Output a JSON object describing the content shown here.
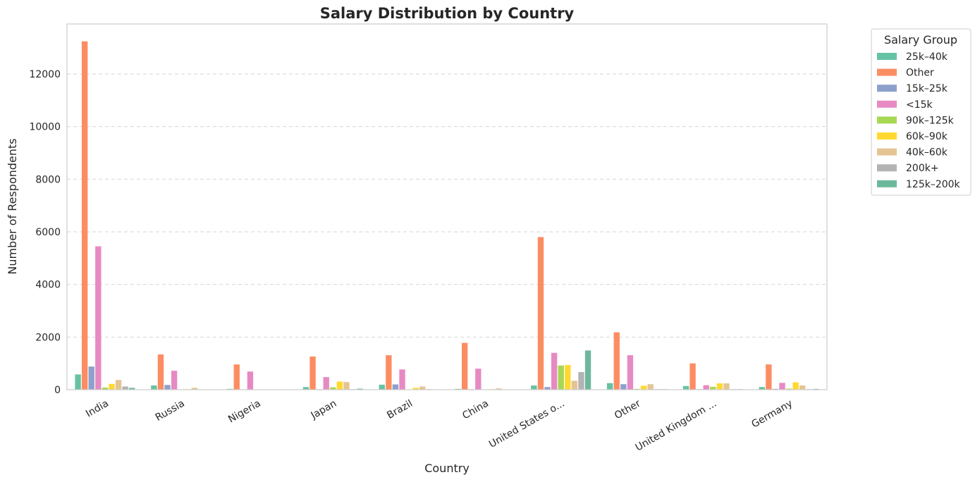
{
  "chart_data": {
    "type": "bar",
    "title": "Salary Distribution by Country",
    "xlabel": "Country",
    "ylabel": "Number of Respondents",
    "ylim": [
      0,
      13900
    ],
    "yticks": [
      0,
      2000,
      4000,
      6000,
      8000,
      10000,
      12000
    ],
    "grid": "y dashed",
    "legend_title": "Salary Group",
    "legend_position": "outside top-right",
    "categories": [
      "India",
      "Russia",
      "Nigeria",
      "Japan",
      "Brazil",
      "China",
      "United States o...",
      "Other",
      "United Kingdom ...",
      "Germany"
    ],
    "series": [
      {
        "name": "25k–40k",
        "color": "#66c2a5",
        "values": [
          580,
          160,
          30,
          100,
          190,
          30,
          160,
          250,
          140,
          100
        ]
      },
      {
        "name": "Other",
        "color": "#fc8d62",
        "values": [
          13240,
          1340,
          960,
          1260,
          1310,
          1780,
          5800,
          2180,
          1000,
          960
        ]
      },
      {
        "name": "15k–25k",
        "color": "#8da0cb",
        "values": [
          880,
          180,
          10,
          20,
          200,
          20,
          100,
          210,
          20,
          30
        ]
      },
      {
        "name": "<15k",
        "color": "#e78ac3",
        "values": [
          5450,
          720,
          690,
          480,
          770,
          800,
          1400,
          1310,
          170,
          260
        ]
      },
      {
        "name": "90k–125k",
        "color": "#a6d854",
        "values": [
          80,
          10,
          5,
          90,
          10,
          10,
          920,
          30,
          110,
          40
        ]
      },
      {
        "name": "60k–90k",
        "color": "#ffd92f",
        "values": [
          220,
          20,
          5,
          310,
          70,
          20,
          940,
          150,
          240,
          280
        ]
      },
      {
        "name": "40k–60k",
        "color": "#e5c494",
        "values": [
          370,
          70,
          5,
          290,
          120,
          50,
          340,
          210,
          240,
          160
        ]
      },
      {
        "name": "200k+",
        "color": "#b3b3b3",
        "values": [
          120,
          10,
          5,
          20,
          20,
          10,
          670,
          20,
          20,
          20
        ]
      },
      {
        "name": "125k–200k",
        "color": "#6cb89c",
        "values": [
          70,
          5,
          5,
          40,
          10,
          10,
          1490,
          20,
          20,
          30
        ]
      }
    ]
  }
}
